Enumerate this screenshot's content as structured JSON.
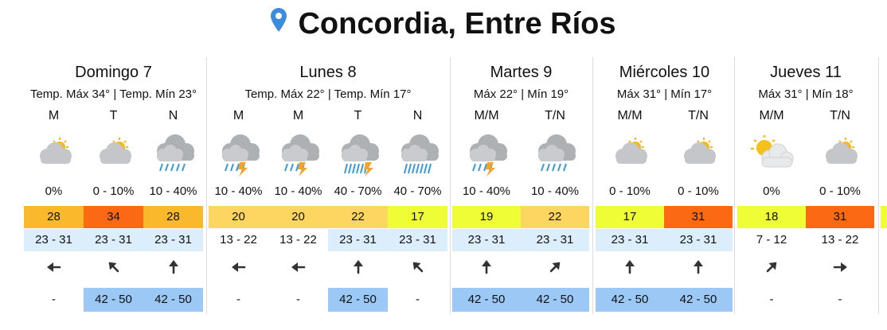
{
  "header": {
    "title": "Concordia, Entre Ríos",
    "icon": "location-pin-icon",
    "icon_color": "#3d8bdb"
  },
  "colors": {
    "temp_orange": "#fab82d",
    "temp_darkorange": "#fb6a12",
    "temp_lightorange": "#fdd561",
    "temp_lime": "#eefd36",
    "range_blue": "#dceefb",
    "gust_blue": "#9cc8f5",
    "separator": "#dddddd"
  },
  "days": [
    {
      "name": "Domingo 7",
      "temps": "Temp. Máx 34° | Temp. Mín 23°",
      "periods": [
        {
          "period": "M",
          "icon": "partly-cloudy-icon",
          "rain": "0%",
          "temp": "28",
          "temp_color": "#fab82d",
          "range": "23 - 31",
          "range_bg": "#dceefb",
          "wind_icon": "arrow-left-icon",
          "wind_deg": 270,
          "gust": "-",
          "gust_bg": ""
        },
        {
          "period": "T",
          "icon": "partly-cloudy-icon",
          "rain": "0 - 10%",
          "temp": "34",
          "temp_color": "#fb6a12",
          "range": "23 - 31",
          "range_bg": "#dceefb",
          "wind_icon": "arrow-up-left-icon",
          "wind_deg": 315,
          "gust": "42 - 50",
          "gust_bg": "#9cc8f5"
        },
        {
          "period": "N",
          "icon": "rain-cloud-icon",
          "rain": "10 - 40%",
          "temp": "28",
          "temp_color": "#fab82d",
          "range": "23 - 31",
          "range_bg": "#dceefb",
          "wind_icon": "arrow-up-icon",
          "wind_deg": 0,
          "gust": "42 - 50",
          "gust_bg": "#9cc8f5"
        }
      ]
    },
    {
      "name": "Lunes 8",
      "temps": "Temp. Máx 22° | Temp. Mín 17°",
      "periods": [
        {
          "period": "M",
          "icon": "thunderstorm-icon",
          "rain": "10 - 40%",
          "temp": "20",
          "temp_color": "#fdd561",
          "range": "13 - 22",
          "range_bg": "",
          "wind_icon": "arrow-left-icon",
          "wind_deg": 270,
          "gust": "-",
          "gust_bg": ""
        },
        {
          "period": "M",
          "icon": "thunderstorm-icon",
          "rain": "10 - 40%",
          "temp": "20",
          "temp_color": "#fdd561",
          "range": "13 - 22",
          "range_bg": "",
          "wind_icon": "arrow-left-icon",
          "wind_deg": 270,
          "gust": "-",
          "gust_bg": ""
        },
        {
          "period": "T",
          "icon": "heavy-thunderstorm-icon",
          "rain": "40 - 70%",
          "temp": "22",
          "temp_color": "#fdd561",
          "range": "23 - 31",
          "range_bg": "#dceefb",
          "wind_icon": "arrow-up-icon",
          "wind_deg": 0,
          "gust": "42 - 50",
          "gust_bg": "#9cc8f5"
        },
        {
          "period": "N",
          "icon": "heavy-rain-icon",
          "rain": "40 - 70%",
          "temp": "17",
          "temp_color": "#eefd36",
          "range": "23 - 31",
          "range_bg": "#dceefb",
          "wind_icon": "arrow-up-left-icon",
          "wind_deg": 315,
          "gust": "-",
          "gust_bg": ""
        }
      ]
    },
    {
      "name": "Martes 9",
      "temps": "Máx 22° | Mín 19°",
      "periods": [
        {
          "period": "M/M",
          "icon": "thunderstorm-icon",
          "rain": "10 - 40%",
          "temp": "19",
          "temp_color": "#eefd36",
          "range": "23 - 31",
          "range_bg": "#dceefb",
          "wind_icon": "arrow-up-icon",
          "wind_deg": 0,
          "gust": "42 - 50",
          "gust_bg": "#9cc8f5"
        },
        {
          "period": "T/N",
          "icon": "rain-cloud-icon",
          "rain": "10 - 40%",
          "temp": "22",
          "temp_color": "#fdd561",
          "range": "23 - 31",
          "range_bg": "#dceefb",
          "wind_icon": "arrow-up-right-icon",
          "wind_deg": 45,
          "gust": "42 - 50",
          "gust_bg": "#9cc8f5"
        }
      ]
    },
    {
      "name": "Miércoles 10",
      "temps": "Máx 31° | Mín 17°",
      "periods": [
        {
          "period": "M/M",
          "icon": "partly-cloudy-icon",
          "rain": "0 - 10%",
          "temp": "17",
          "temp_color": "#eefd36",
          "range": "23 - 31",
          "range_bg": "#dceefb",
          "wind_icon": "arrow-up-icon",
          "wind_deg": 0,
          "gust": "42 - 50",
          "gust_bg": "#9cc8f5"
        },
        {
          "period": "T/N",
          "icon": "partly-cloudy-icon",
          "rain": "0 - 10%",
          "temp": "31",
          "temp_color": "#fb6a12",
          "range": "23 - 31",
          "range_bg": "#dceefb",
          "wind_icon": "arrow-up-icon",
          "wind_deg": 0,
          "gust": "42 - 50",
          "gust_bg": "#9cc8f5"
        }
      ]
    },
    {
      "name": "Jueves 11",
      "temps": "Máx 31° | Mín 18°",
      "periods": [
        {
          "period": "M/M",
          "icon": "sun-behind-cloud-icon",
          "rain": "0%",
          "temp": "18",
          "temp_color": "#eefd36",
          "range": "7 - 12",
          "range_bg": "",
          "wind_icon": "arrow-up-right-icon",
          "wind_deg": 45,
          "gust": "-",
          "gust_bg": ""
        },
        {
          "period": "T/N",
          "icon": "partly-cloudy-icon",
          "rain": "0 - 10%",
          "temp": "31",
          "temp_color": "#fb6a12",
          "range": "13 - 22",
          "range_bg": "",
          "wind_icon": "arrow-right-icon",
          "wind_deg": 90,
          "gust": "-",
          "gust_bg": ""
        }
      ]
    }
  ]
}
